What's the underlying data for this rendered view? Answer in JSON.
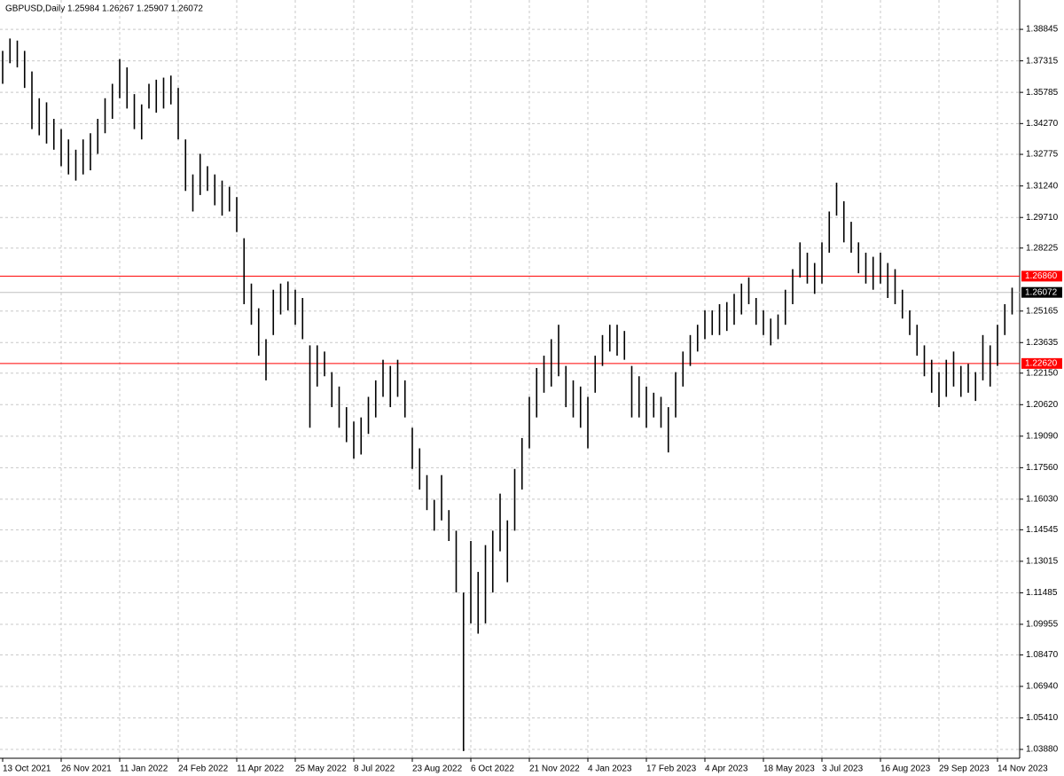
{
  "chart_data": {
    "type": "hilo",
    "title": "GBPUSD,Daily  1.25984 1.26267 1.25907 1.26072",
    "color": "#000000",
    "grid": true,
    "ylim": [
      1.0345,
      1.4027
    ],
    "yticks": [
      1.38845,
      1.37315,
      1.35785,
      {
        "value": 1.3427,
        "label": "1.34270"
      },
      1.32775,
      {
        "value": 1.3124,
        "label": "1.31240"
      },
      {
        "value": 1.2971,
        "label": "1.29710"
      },
      1.28225,
      1.25165,
      1.23635,
      {
        "value": 1.2215,
        "label": "1.22150"
      },
      {
        "value": 1.2062,
        "label": "1.20620"
      },
      {
        "value": 1.1909,
        "label": "1.19090"
      },
      {
        "value": 1.1756,
        "label": "1.17560"
      },
      {
        "value": 1.1603,
        "label": "1.16030"
      },
      1.14545,
      1.13015,
      1.11485,
      1.09955,
      {
        "value": 1.0847,
        "label": "1.08470"
      },
      {
        "value": 1.0694,
        "label": "1.06940"
      },
      {
        "value": 1.0541,
        "label": "1.05410"
      },
      {
        "value": 1.0388,
        "label": "1.03880"
      }
    ],
    "hlines": [
      {
        "value": 1.2686,
        "label": "1.26860",
        "color": "#ff0000"
      },
      {
        "value": 1.2262,
        "label": "1.22620",
        "color": "#ff0000"
      },
      {
        "value": 1.26072,
        "label": "1.26072",
        "color": "#c0c0c0"
      }
    ],
    "categories": [
      "13 Oct 2021",
      null,
      null,
      null,
      null,
      null,
      null,
      null,
      "26 Nov 2021",
      null,
      null,
      null,
      null,
      null,
      null,
      null,
      "11 Jan 2022",
      null,
      null,
      null,
      null,
      null,
      null,
      null,
      "24 Feb 2022",
      null,
      null,
      null,
      null,
      null,
      null,
      null,
      "11 Apr 2022",
      null,
      null,
      null,
      null,
      null,
      null,
      null,
      "25 May 2022",
      null,
      null,
      null,
      null,
      null,
      null,
      null,
      "8 Jul 2022",
      null,
      null,
      null,
      null,
      null,
      null,
      null,
      "23 Aug 2022",
      null,
      null,
      null,
      null,
      null,
      null,
      null,
      "6 Oct 2022",
      null,
      null,
      null,
      null,
      null,
      null,
      null,
      "21 Nov 2022",
      null,
      null,
      null,
      null,
      null,
      null,
      null,
      "4 Jan 2023",
      null,
      null,
      null,
      null,
      null,
      null,
      null,
      "17 Feb 2023",
      null,
      null,
      null,
      null,
      null,
      null,
      null,
      "4 Apr 2023",
      null,
      null,
      null,
      null,
      null,
      null,
      null,
      "18 May 2023",
      null,
      null,
      null,
      null,
      null,
      null,
      null,
      "3 Jul 2023",
      null,
      null,
      null,
      null,
      null,
      null,
      null,
      "16 Aug 2023",
      null,
      null,
      null,
      null,
      null,
      null,
      null,
      "29 Sep 2023",
      null,
      null,
      null,
      null,
      null,
      null,
      null,
      "14 Nov 2023",
      null,
      null
    ],
    "high": [
      1.378,
      1.384,
      1.383,
      1.378,
      1.368,
      1.355,
      1.353,
      1.345,
      1.34,
      1.335,
      1.33,
      1.335,
      1.338,
      1.345,
      1.355,
      1.362,
      1.374,
      1.37,
      1.357,
      1.352,
      1.362,
      1.364,
      1.365,
      1.366,
      1.36,
      1.335,
      1.318,
      1.328,
      1.322,
      1.318,
      1.315,
      1.312,
      1.307,
      1.287,
      1.265,
      1.253,
      1.238,
      1.262,
      1.265,
      1.266,
      1.262,
      1.258,
      1.235,
      1.235,
      1.232,
      1.222,
      1.215,
      1.205,
      1.198,
      1.2,
      1.21,
      1.218,
      1.228,
      1.225,
      1.228,
      1.218,
      1.195,
      1.185,
      1.172,
      1.16,
      1.172,
      1.155,
      1.145,
      1.115,
      1.14,
      1.125,
      1.138,
      1.145,
      1.163,
      1.15,
      1.175,
      1.19,
      1.21,
      1.224,
      1.23,
      1.238,
      1.245,
      1.225,
      1.218,
      1.215,
      1.21,
      1.23,
      1.24,
      1.245,
      1.245,
      1.242,
      1.225,
      1.22,
      1.215,
      1.212,
      1.21,
      1.205,
      1.222,
      1.232,
      1.24,
      1.245,
      1.252,
      1.252,
      1.255,
      1.256,
      1.26,
      1.265,
      1.268,
      1.258,
      1.252,
      1.248,
      1.25,
      1.262,
      1.272,
      1.285,
      1.28,
      1.275,
      1.285,
      1.3,
      1.314,
      1.305,
      1.295,
      1.285,
      1.28,
      1.278,
      1.28,
      1.275,
      1.272,
      1.262,
      1.252,
      1.245,
      1.235,
      1.228,
      1.222,
      1.228,
      1.232,
      1.225,
      1.226,
      1.222,
      1.24,
      1.235,
      1.245,
      1.255,
      1.263
    ],
    "low": [
      1.362,
      1.372,
      1.37,
      1.36,
      1.34,
      1.337,
      1.333,
      1.33,
      1.322,
      1.318,
      1.315,
      1.318,
      1.32,
      1.328,
      1.338,
      1.345,
      1.355,
      1.35,
      1.34,
      1.335,
      1.35,
      1.348,
      1.35,
      1.352,
      1.335,
      1.31,
      1.3,
      1.308,
      1.31,
      1.303,
      1.298,
      1.3,
      1.29,
      1.255,
      1.245,
      1.23,
      1.218,
      1.24,
      1.25,
      1.252,
      1.245,
      1.238,
      1.195,
      1.215,
      1.22,
      1.205,
      1.195,
      1.188,
      1.18,
      1.182,
      1.192,
      1.2,
      1.21,
      1.205,
      1.21,
      1.2,
      1.175,
      1.165,
      1.155,
      1.145,
      1.15,
      1.14,
      1.115,
      1.038,
      1.1,
      1.095,
      1.1,
      1.115,
      1.135,
      1.12,
      1.145,
      1.165,
      1.185,
      1.2,
      1.212,
      1.215,
      1.22,
      1.205,
      1.2,
      1.195,
      1.185,
      1.212,
      1.225,
      1.232,
      1.23,
      1.228,
      1.2,
      1.2,
      1.195,
      1.2,
      1.195,
      1.183,
      1.2,
      1.215,
      1.225,
      1.232,
      1.238,
      1.24,
      1.24,
      1.242,
      1.245,
      1.25,
      1.255,
      1.245,
      1.24,
      1.235,
      1.238,
      1.245,
      1.255,
      1.268,
      1.265,
      1.26,
      1.265,
      1.28,
      1.298,
      1.285,
      1.28,
      1.27,
      1.265,
      1.262,
      1.265,
      1.258,
      1.255,
      1.248,
      1.24,
      1.23,
      1.22,
      1.212,
      1.205,
      1.21,
      1.215,
      1.21,
      1.212,
      1.208,
      1.218,
      1.215,
      1.225,
      1.24,
      1.25
    ]
  }
}
